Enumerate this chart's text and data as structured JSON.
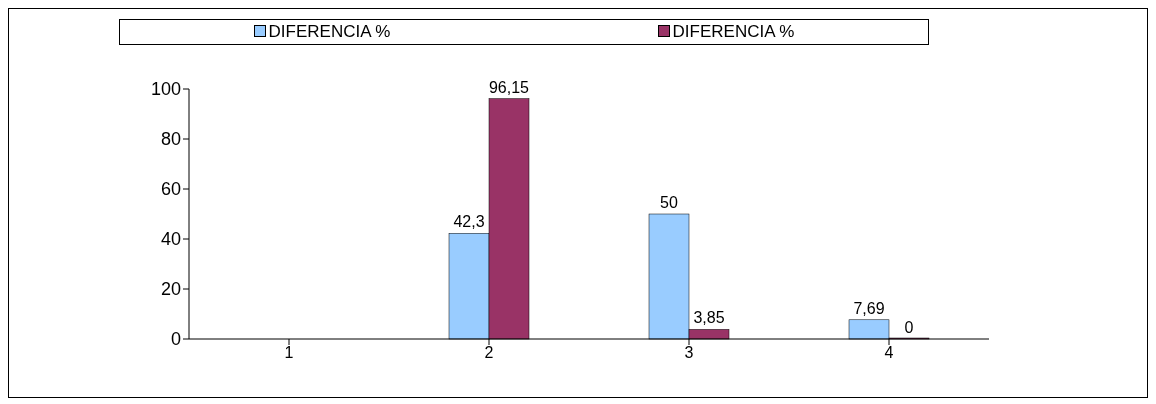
{
  "chart_data": {
    "type": "bar",
    "categories": [
      "1",
      "2",
      "3",
      "4"
    ],
    "series": [
      {
        "name": "DIFERENCIA %",
        "color": "#99ccff",
        "values": [
          null,
          42.3,
          50,
          7.69
        ],
        "value_labels": [
          null,
          "42,3",
          "50",
          "7,69"
        ]
      },
      {
        "name": "DIFERENCIA %",
        "color": "#993366",
        "values": [
          null,
          96.15,
          3.85,
          0
        ],
        "value_labels": [
          null,
          "96,15",
          "3,85",
          "0"
        ]
      }
    ],
    "ylim": [
      0,
      100
    ],
    "yticks": [
      0,
      20,
      40,
      60,
      80,
      100
    ],
    "grid": false,
    "legend": "top"
  }
}
